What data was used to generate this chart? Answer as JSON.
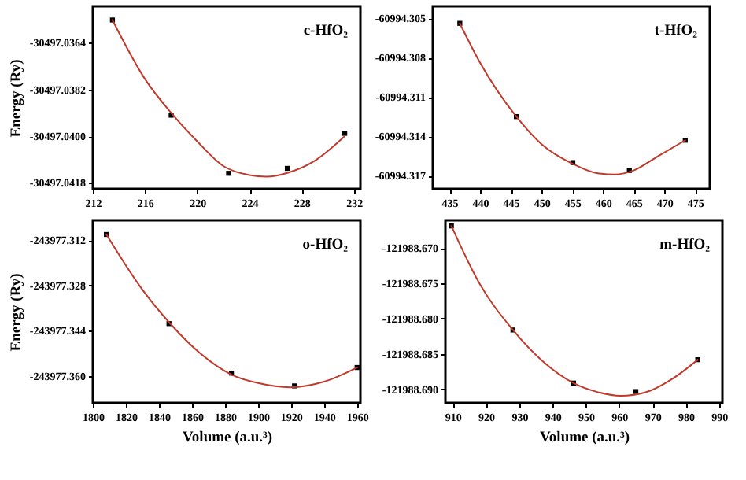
{
  "chart_data": [
    {
      "type": "scatter",
      "ylabel": "Energy (Ry)",
      "annotations": [
        "c-HfO₂"
      ],
      "grid": false,
      "xlim": [
        212,
        232.5
      ],
      "xticks": [
        212,
        216,
        220,
        224,
        228,
        232
      ],
      "ylim": [
        -30497.04203,
        -30497.03499
      ],
      "yticks": [
        -30497.0364,
        -30497.0382,
        {
          "value": -30497.04,
          "label": "-30497.0400"
        },
        -30497.0418
      ],
      "series": [
        {
          "marker": "square",
          "color": "#000000",
          "x": [
            213.5,
            218,
            222.4,
            226.9,
            231.3
          ],
          "values": [
            -30497.03552,
            -30497.03919,
            -30497.04143,
            -30497.04124,
            -30497.03989
          ]
        },
        {
          "type": "line",
          "color": "#c0392b",
          "x": [
            213.5,
            216,
            218,
            220,
            222,
            224,
            225.3,
            227,
            229,
            231.3
          ],
          "values": [
            -30497.03552,
            -30497.0378,
            -30497.0391,
            -30497.0402,
            -30497.04115,
            -30497.0415,
            -30497.04156,
            -30497.0414,
            -30497.04095,
            -30497.04
          ]
        }
      ]
    },
    {
      "type": "scatter",
      "annotations": [
        "t-HfO₂"
      ],
      "grid": false,
      "xlim": [
        432.3,
        477.4
      ],
      "xticks": [
        435,
        440,
        445,
        450,
        455,
        460,
        465,
        470,
        475
      ],
      "ylim": [
        -60994.318,
        -60994.3041
      ],
      "yticks": [
        -60994.305,
        -60994.308,
        -60994.311,
        -60994.314,
        -60994.317
      ],
      "series": [
        {
          "marker": "square",
          "color": "#000000",
          "x": [
            436.7,
            445.9,
            455.1,
            464.3,
            473.4
          ],
          "values": [
            -60994.3054,
            -60994.3125,
            -60994.316,
            -60994.3166,
            -60994.3143
          ]
        },
        {
          "type": "line",
          "color": "#c0392b",
          "x": [
            436.7,
            440,
            445.9,
            450,
            455.1,
            459,
            461.9,
            465,
            469,
            473.4
          ],
          "values": [
            -60994.3054,
            -60994.3084,
            -60994.3125,
            -60994.3146,
            -60994.3161,
            -60994.3168,
            -60994.3169,
            -60994.3166,
            -60994.3155,
            -60994.3143
          ]
        }
      ]
    },
    {
      "type": "scatter",
      "xlabel": "Volume (a.u.³)",
      "ylabel": "Energy (Ry)",
      "annotations": [
        "o-HfO₂"
      ],
      "grid": false,
      "xlim": [
        1800,
        1962
      ],
      "xticks": [
        1800,
        1820,
        1840,
        1860,
        1880,
        1900,
        1920,
        1940,
        1960
      ],
      "ylim": [
        -243977.3695,
        -243977.305
      ],
      "yticks": [
        -243977.312,
        -243977.328,
        -243977.344,
        {
          "value": -243977.36,
          "label": "-243977.360"
        }
      ],
      "series": [
        {
          "marker": "square",
          "color": "#000000",
          "x": [
            1808.2,
            1846.1,
            1883.9,
            1922.1,
            1960
          ],
          "values": [
            -243977.31,
            -243977.3415,
            -243977.359,
            -243977.3635,
            -243977.357
          ]
        },
        {
          "type": "line",
          "color": "#c0392b",
          "x": [
            1808.2,
            1830,
            1846.1,
            1865,
            1883.9,
            1900,
            1919.7,
            1940,
            1960
          ],
          "values": [
            -243977.31,
            -243977.3295,
            -243977.341,
            -243977.352,
            -243977.3595,
            -243977.3625,
            -243977.364,
            -243977.362,
            -243977.357
          ]
        }
      ]
    },
    {
      "type": "scatter",
      "xlabel": "Volume (a.u.³)",
      "annotations": [
        "m-HfO₂"
      ],
      "grid": false,
      "xlim": [
        907.8,
        991
      ],
      "xticks": [
        910,
        920,
        930,
        940,
        950,
        960,
        970,
        980,
        990
      ],
      "ylim": [
        -121988.6919,
        -121988.6661
      ],
      "yticks": [
        {
          "value": -121988.67,
          "label": "-121988.670"
        },
        -121988.675,
        {
          "value": -121988.68,
          "label": "-121988.680"
        },
        -121988.685,
        {
          "value": -121988.69,
          "label": "-121988.690"
        }
      ],
      "series": [
        {
          "marker": "square",
          "color": "#000000",
          "x": [
            909.6,
            928.1,
            946.3,
            965,
            983.6
          ],
          "values": [
            -121988.6669,
            -121988.6816,
            -121988.6891,
            -121988.6903,
            -121988.6858
          ]
        },
        {
          "type": "line",
          "color": "#c0392b",
          "x": [
            909.6,
            918,
            928.1,
            937,
            946.3,
            953,
            960.4,
            968,
            976,
            983.6
          ],
          "values": [
            -121988.6669,
            -121988.675,
            -121988.6816,
            -121988.686,
            -121988.6891,
            -121988.6903,
            -121988.6909,
            -121988.6904,
            -121988.6885,
            -121988.6858
          ]
        }
      ]
    }
  ]
}
